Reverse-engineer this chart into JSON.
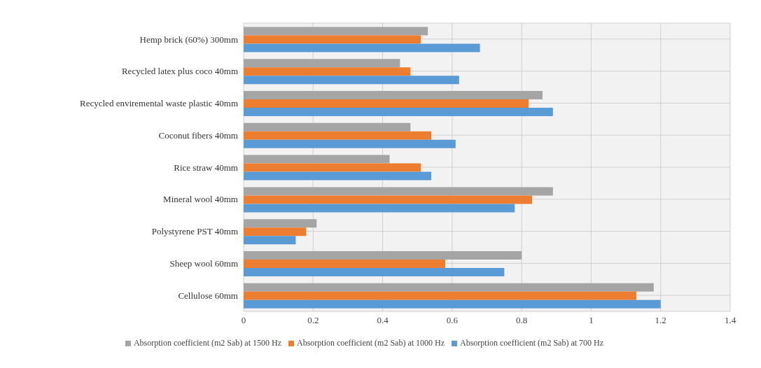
{
  "chart_data": {
    "type": "bar",
    "orientation": "horizontal",
    "categories": [
      "Hemp brick (60%) 300mm",
      "Recycled latex plus coco 40mm",
      "Recycled enviremental waste plastic 40mm",
      "Coconut fibers 40mm",
      "Rice straw 40mm",
      "Mineral wool 40mm",
      "Polystyrene PST 40mm",
      "Sheep wool 60mm",
      "Cellulose 60mm"
    ],
    "series": [
      {
        "name": "Absorption coefficient (m2 Sab) at 1500 Hz",
        "color": "#a5a5a5",
        "values": [
          0.53,
          0.45,
          0.86,
          0.48,
          0.42,
          0.89,
          0.21,
          0.8,
          1.18
        ]
      },
      {
        "name": "Absorption coefficient (m2 Sab) at 1000 Hz",
        "color": "#ed7d31",
        "values": [
          0.51,
          0.48,
          0.82,
          0.54,
          0.51,
          0.83,
          0.18,
          0.58,
          1.13
        ]
      },
      {
        "name": "Absorption coefficient (m2 Sab) at 700 Hz",
        "color": "#5b9bd5",
        "values": [
          0.68,
          0.62,
          0.89,
          0.61,
          0.54,
          0.78,
          0.15,
          0.75,
          1.2
        ]
      }
    ],
    "xlim": [
      0,
      1.4
    ],
    "xticks": [
      0,
      0.2,
      0.4,
      0.6,
      0.8,
      1,
      1.2,
      1.4
    ],
    "grid": true,
    "legend": "bottom"
  }
}
